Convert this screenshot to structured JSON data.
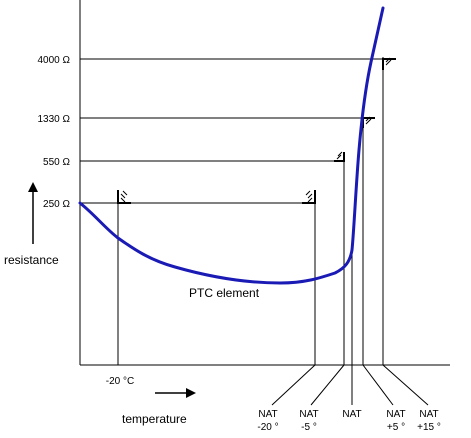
{
  "diagram": {
    "y_axis_label": "resistance",
    "x_axis_label": "temperature",
    "curve_label": "PTC element",
    "curve_color": "#1a1ab5",
    "resistance_levels": [
      "4000 Ω",
      "1330 Ω",
      "550 Ω",
      "250 Ω"
    ],
    "temp_start_label": "-20 °C",
    "nat_labels": [
      {
        "line1": "NAT",
        "line2": "-20 °"
      },
      {
        "line1": "NAT",
        "line2": "-5 °"
      },
      {
        "line1": "NAT",
        "line2": ""
      },
      {
        "line1": "NAT",
        "line2": "+5 °"
      },
      {
        "line1": "NAT",
        "line2": "+15 °"
      }
    ]
  }
}
